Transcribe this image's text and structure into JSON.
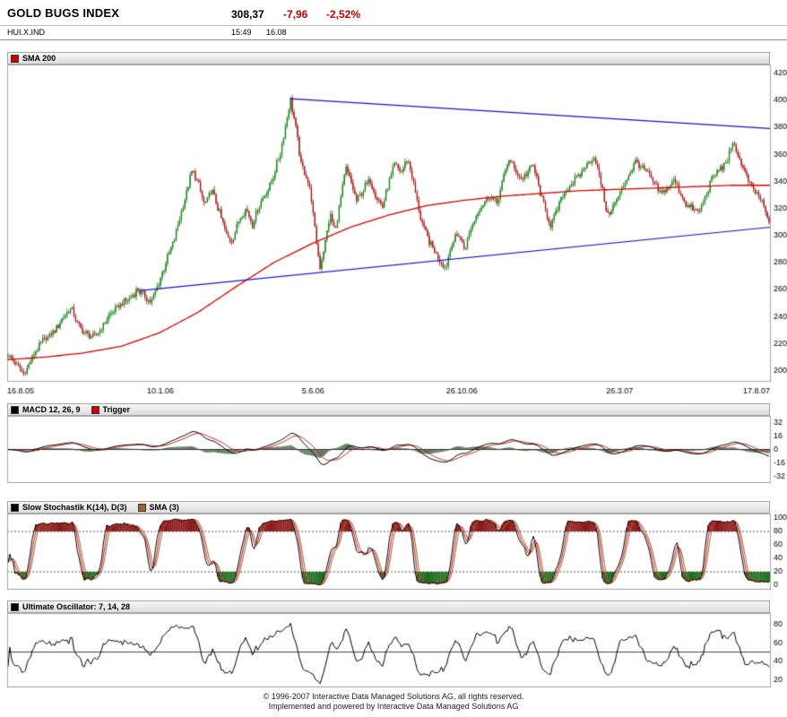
{
  "header": {
    "title": "GOLD BUGS INDEX",
    "symbol": "HUI.X.IND",
    "last": "308,37",
    "change": "-7,96",
    "change_pct": "-2,52%",
    "time": "15:49",
    "date": "16.08",
    "negative_color": "#cc0000"
  },
  "footer": {
    "line1": "© 1996-2007 Interactive Data Managed Solutions AG, all rights reserved.",
    "line2": "Implemented and powered by  Interactive Data Managed Solutions AG"
  },
  "chart_data": [
    {
      "type": "candlestick",
      "panel": "price",
      "legend": [
        {
          "label": "SMA 200",
          "color": "#cc0000"
        }
      ],
      "ylim": [
        192,
        426
      ],
      "yticks": [
        420,
        400,
        380,
        360,
        340,
        320,
        300,
        280,
        260,
        240,
        220,
        200
      ],
      "xticks": [
        {
          "t": 0.0,
          "label": "16.8.05"
        },
        {
          "t": 0.201,
          "label": "10.1.06"
        },
        {
          "t": 0.401,
          "label": "5.6.06"
        },
        {
          "t": 0.596,
          "label": "26.10.06"
        },
        {
          "t": 0.803,
          "label": "26.3.07"
        },
        {
          "t": 1.0,
          "label": "17.8.07"
        }
      ],
      "bars": 440,
      "price_anchors": [
        [
          0.0,
          212
        ],
        [
          0.01,
          205
        ],
        [
          0.021,
          197
        ],
        [
          0.032,
          210
        ],
        [
          0.042,
          220
        ],
        [
          0.055,
          226
        ],
        [
          0.063,
          231
        ],
        [
          0.073,
          240
        ],
        [
          0.083,
          246
        ],
        [
          0.092,
          234
        ],
        [
          0.1,
          228
        ],
        [
          0.113,
          224
        ],
        [
          0.125,
          233
        ],
        [
          0.133,
          241
        ],
        [
          0.146,
          248
        ],
        [
          0.158,
          252
        ],
        [
          0.17,
          260
        ],
        [
          0.18,
          255
        ],
        [
          0.188,
          250
        ],
        [
          0.2,
          268
        ],
        [
          0.208,
          281
        ],
        [
          0.218,
          296
        ],
        [
          0.225,
          312
        ],
        [
          0.234,
          330
        ],
        [
          0.242,
          348
        ],
        [
          0.25,
          338
        ],
        [
          0.258,
          322
        ],
        [
          0.268,
          334
        ],
        [
          0.277,
          318
        ],
        [
          0.287,
          300
        ],
        [
          0.294,
          295
        ],
        [
          0.304,
          312
        ],
        [
          0.313,
          320
        ],
        [
          0.321,
          308
        ],
        [
          0.333,
          326
        ],
        [
          0.342,
          334
        ],
        [
          0.35,
          346
        ],
        [
          0.358,
          362
        ],
        [
          0.366,
          385
        ],
        [
          0.371,
          401
        ],
        [
          0.378,
          380
        ],
        [
          0.385,
          352
        ],
        [
          0.392,
          344
        ],
        [
          0.398,
          330
        ],
        [
          0.404,
          300
        ],
        [
          0.41,
          276
        ],
        [
          0.417,
          296
        ],
        [
          0.423,
          315
        ],
        [
          0.43,
          303
        ],
        [
          0.438,
          330
        ],
        [
          0.444,
          350
        ],
        [
          0.452,
          337
        ],
        [
          0.458,
          325
        ],
        [
          0.467,
          334
        ],
        [
          0.475,
          341
        ],
        [
          0.483,
          330
        ],
        [
          0.492,
          321
        ],
        [
          0.5,
          338
        ],
        [
          0.508,
          352
        ],
        [
          0.517,
          347
        ],
        [
          0.525,
          357
        ],
        [
          0.533,
          338
        ],
        [
          0.542,
          313
        ],
        [
          0.55,
          300
        ],
        [
          0.558,
          291
        ],
        [
          0.567,
          282
        ],
        [
          0.575,
          276
        ],
        [
          0.583,
          294
        ],
        [
          0.592,
          301
        ],
        [
          0.6,
          289
        ],
        [
          0.608,
          305
        ],
        [
          0.617,
          317
        ],
        [
          0.625,
          324
        ],
        [
          0.633,
          330
        ],
        [
          0.642,
          323
        ],
        [
          0.65,
          340
        ],
        [
          0.658,
          357
        ],
        [
          0.665,
          349
        ],
        [
          0.675,
          341
        ],
        [
          0.683,
          347
        ],
        [
          0.69,
          352
        ],
        [
          0.7,
          330
        ],
        [
          0.708,
          315
        ],
        [
          0.713,
          307
        ],
        [
          0.721,
          318
        ],
        [
          0.729,
          330
        ],
        [
          0.738,
          337
        ],
        [
          0.75,
          344
        ],
        [
          0.76,
          352
        ],
        [
          0.771,
          358
        ],
        [
          0.779,
          338
        ],
        [
          0.788,
          315
        ],
        [
          0.796,
          322
        ],
        [
          0.804,
          331
        ],
        [
          0.813,
          342
        ],
        [
          0.825,
          355
        ],
        [
          0.833,
          350
        ],
        [
          0.842,
          345
        ],
        [
          0.85,
          337
        ],
        [
          0.858,
          330
        ],
        [
          0.867,
          335
        ],
        [
          0.875,
          341
        ],
        [
          0.883,
          332
        ],
        [
          0.892,
          322
        ],
        [
          0.9,
          319
        ],
        [
          0.908,
          317
        ],
        [
          0.917,
          330
        ],
        [
          0.925,
          342
        ],
        [
          0.933,
          348
        ],
        [
          0.942,
          353
        ],
        [
          0.948,
          360
        ],
        [
          0.954,
          368
        ],
        [
          0.96,
          358
        ],
        [
          0.967,
          348
        ],
        [
          0.973,
          340
        ],
        [
          0.979,
          334
        ],
        [
          0.985,
          330
        ],
        [
          0.99,
          326
        ],
        [
          0.995,
          318
        ],
        [
          1.0,
          308
        ]
      ],
      "sma200": [
        [
          0.0,
          208
        ],
        [
          0.05,
          210
        ],
        [
          0.1,
          213
        ],
        [
          0.15,
          218
        ],
        [
          0.2,
          228
        ],
        [
          0.25,
          243
        ],
        [
          0.3,
          262
        ],
        [
          0.35,
          280
        ],
        [
          0.4,
          294
        ],
        [
          0.45,
          306
        ],
        [
          0.5,
          315
        ],
        [
          0.55,
          322
        ],
        [
          0.6,
          326
        ],
        [
          0.65,
          329
        ],
        [
          0.7,
          331
        ],
        [
          0.75,
          333
        ],
        [
          0.8,
          334
        ],
        [
          0.85,
          335
        ],
        [
          0.9,
          336
        ],
        [
          0.95,
          337
        ],
        [
          1.0,
          337
        ]
      ],
      "trendlines": [
        {
          "p1": [
            0.371,
            401
          ],
          "p2": [
            1.0,
            379
          ]
        },
        {
          "p1": [
            0.173,
            259
          ],
          "p2": [
            1.0,
            306
          ]
        }
      ],
      "colors": {
        "up": "#0f7d0f",
        "down": "#a01010",
        "sma": "#dd0000",
        "trendline": "#1414cc"
      }
    },
    {
      "type": "line",
      "panel": "macd",
      "legend": [
        {
          "label": "MACD 12, 26, 9",
          "color": "#000000"
        },
        {
          "label": "Trigger",
          "color": "#cc0000"
        }
      ],
      "params": {
        "fast": 12,
        "slow": 26,
        "signal": 9
      },
      "ylim": [
        -40,
        40
      ],
      "yticks": [
        32,
        16,
        0,
        -16,
        -32
      ],
      "colors": {
        "macd": "#000000",
        "trigger": "#cc2222",
        "histogram": "#5f7a5f",
        "zeroline": "#333333"
      }
    },
    {
      "type": "line",
      "panel": "slow-stochastic",
      "legend": [
        {
          "label": "Slow Stochastik K(14), D(3)",
          "color": "#000000"
        },
        {
          "label": "SMA (3)",
          "color": "#996633"
        }
      ],
      "params": {
        "k": 14,
        "d": 3,
        "sma": 3
      },
      "ylim": [
        -6,
        106
      ],
      "yticks": [
        100,
        80,
        60,
        40,
        20,
        0
      ],
      "bands": {
        "upper": 80,
        "lower": 20
      },
      "colors": {
        "k": "#000000",
        "d": "#cc2222",
        "sma": "#996633",
        "overbought": "#8b1616",
        "oversold": "#1c6b1c",
        "band": "#555555"
      }
    },
    {
      "type": "line",
      "panel": "ultimate-oscillator",
      "legend": [
        {
          "label": "Ultimate Oscillator: 7, 14, 28",
          "color": "#000000"
        }
      ],
      "params": {
        "p1": 7,
        "p2": 14,
        "p3": 28
      },
      "ylim": [
        12,
        92
      ],
      "yticks": [
        80,
        60,
        40,
        20
      ],
      "midline": 50,
      "colors": {
        "line": "#000000",
        "midline": "#444444"
      }
    }
  ]
}
